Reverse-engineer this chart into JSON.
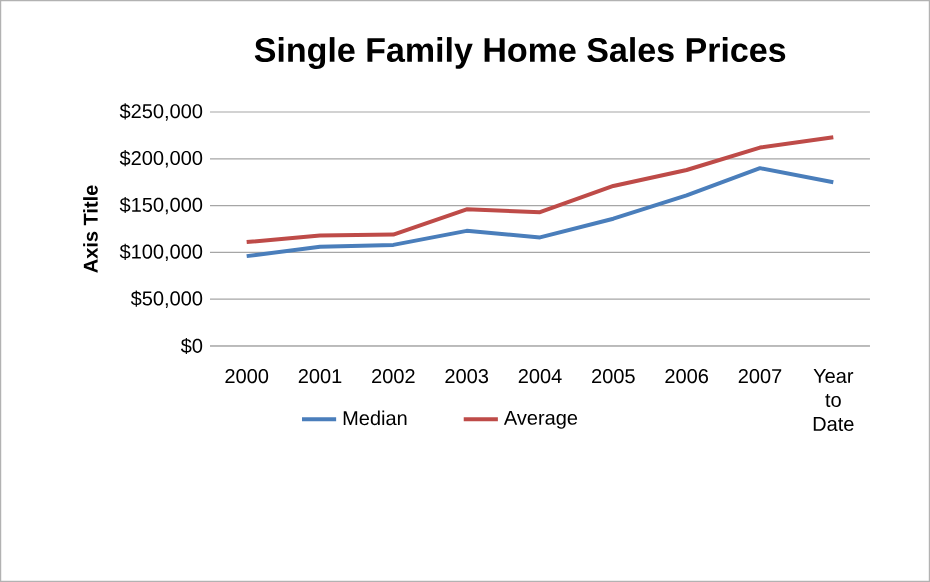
{
  "chart_data": {
    "type": "line",
    "title": "Single Family Home Sales Prices",
    "ylabel": "Axis Title",
    "categories": [
      "2000",
      "2001",
      "2002",
      "2003",
      "2004",
      "2005",
      "2006",
      "2007",
      "Year to Date"
    ],
    "series": [
      {
        "name": "Median",
        "color": "#4a7ebb",
        "values": [
          96000,
          106000,
          108000,
          123000,
          116000,
          136000,
          161000,
          190000,
          175000
        ]
      },
      {
        "name": "Average",
        "color": "#be4b48",
        "values": [
          111000,
          118000,
          119000,
          146000,
          143000,
          171000,
          188000,
          212000,
          223000
        ]
      }
    ],
    "ylim": [
      0,
      250000
    ],
    "yticks": [
      {
        "value": 0,
        "label": "$0"
      },
      {
        "value": 50000,
        "label": "$50,000"
      },
      {
        "value": 100000,
        "label": "$100,000"
      },
      {
        "value": 150000,
        "label": "$150,000"
      },
      {
        "value": 200000,
        "label": "$200,000"
      },
      {
        "value": 250000,
        "label": "$250,000"
      }
    ],
    "grid": "y",
    "legend": "bottom",
    "marker": "none",
    "line_style": "solid"
  }
}
